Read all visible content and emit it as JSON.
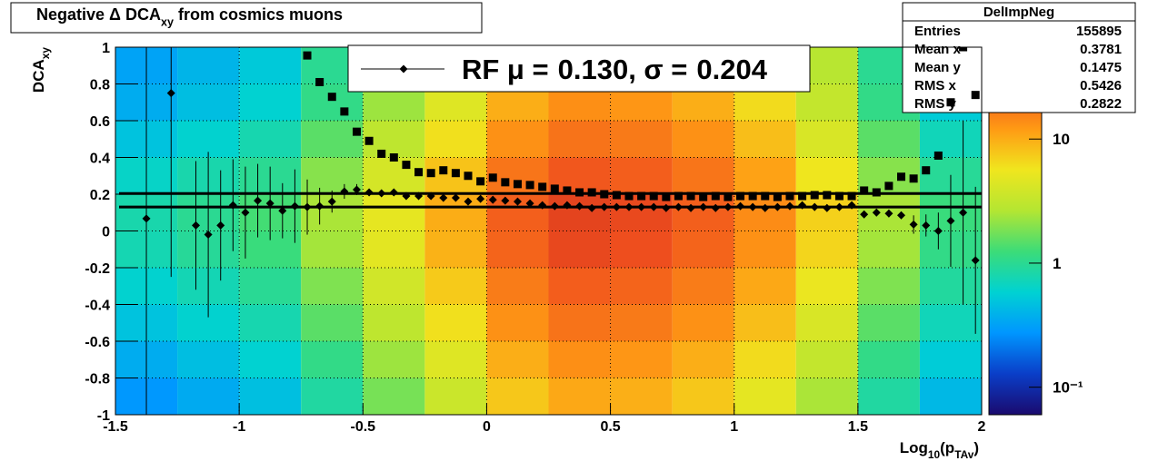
{
  "chart_data": {
    "type": "heatmap",
    "title": [
      "Negative Δ DCA",
      "xy",
      " from cosmics muons"
    ],
    "xlabel": [
      "Log",
      "10",
      "(p",
      "TAv",
      ")"
    ],
    "ylabel": [
      "DCA",
      "xy"
    ],
    "xlim": [
      -1.5,
      2
    ],
    "ylim": [
      -1,
      1
    ],
    "xticks": [
      -1.5,
      -1,
      -0.5,
      0,
      0.5,
      1,
      1.5,
      2
    ],
    "yticks": [
      -1,
      -0.8,
      -0.6,
      -0.4,
      -0.2,
      0,
      0.2,
      0.4,
      0.6,
      0.8,
      1
    ],
    "grid": true,
    "x_edges": [
      -1.5,
      -1.25,
      -1,
      -0.75,
      -0.5,
      -0.25,
      0,
      0.25,
      0.5,
      0.75,
      1,
      1.25,
      1.5,
      1.75,
      2
    ],
    "y_edges": [
      -1,
      -0.8,
      -0.6,
      -0.4,
      -0.2,
      0,
      0.2,
      0.4,
      0.6,
      0.8,
      1
    ],
    "z": [
      [
        0.28,
        0.35,
        0.46,
        0.88,
        1.8,
        3.5,
        7.7,
        10.5,
        9.8,
        7.7,
        4.9,
        2.5,
        0.88,
        0.42
      ],
      [
        0.36,
        0.45,
        0.59,
        1.1,
        2.3,
        4.5,
        9.9,
        13.5,
        12.6,
        9.9,
        6.3,
        3.2,
        1.1,
        0.54
      ],
      [
        0.48,
        0.6,
        0.78,
        1.5,
        3,
        6,
        13.2,
        18,
        16.8,
        13.2,
        8.4,
        4.2,
        1.5,
        0.72
      ],
      [
        0.6,
        0.75,
        0.98,
        1.9,
        3.8,
        7.5,
        16.5,
        22.5,
        21,
        16.5,
        10.5,
        5.3,
        1.9,
        0.9
      ],
      [
        0.76,
        0.95,
        1.2,
        2.4,
        4.8,
        9.5,
        20.9,
        28.5,
        26.6,
        20.9,
        13.3,
        6.7,
        2.4,
        1.1
      ],
      [
        0.8,
        1,
        1.3,
        2.5,
        5,
        10,
        22,
        30,
        28,
        22,
        14,
        7,
        2.5,
        1.2
      ],
      [
        0.64,
        0.8,
        1,
        2,
        4,
        8,
        17.6,
        24,
        22.4,
        17.6,
        11.2,
        5.6,
        2,
        0.96
      ],
      [
        0.48,
        0.6,
        0.78,
        1.5,
        3,
        6,
        13.2,
        18,
        16.8,
        13.2,
        8.4,
        4.2,
        1.5,
        0.72
      ],
      [
        0.36,
        0.45,
        0.59,
        1.1,
        2.3,
        4.5,
        9.9,
        13.5,
        12.6,
        9.9,
        6.3,
        3.2,
        1.1,
        0.54
      ],
      [
        0.32,
        0.4,
        0.52,
        1,
        2,
        4,
        8.8,
        12,
        11.2,
        8.8,
        5.6,
        2.8,
        1,
        0.48
      ]
    ],
    "zlim": [
      0.06,
      55
    ],
    "zscale": "log",
    "zticks": [
      {
        "value": 0.1,
        "label": "10⁻¹"
      },
      1,
      10
    ],
    "palette": [
      "#1a0a6e",
      "#0a3ec8",
      "#0096ff",
      "#00d2d2",
      "#3cdc78",
      "#b4e632",
      "#f0e61e",
      "#ff9a14",
      "#f0501e",
      "#b4141e"
    ],
    "series": [
      {
        "marker": "diamond",
        "color": "#000000",
        "x": [
          -1.375,
          -1.275,
          -1.175,
          -1.125,
          -1.075,
          -1.025,
          -0.975,
          -0.925,
          -0.875,
          -0.825,
          -0.775,
          -0.725,
          -0.675,
          -0.625,
          -0.575,
          -0.525,
          -0.475,
          -0.425,
          -0.375,
          -0.325,
          -0.275,
          -0.225,
          -0.175,
          -0.125,
          -0.075,
          -0.025,
          0.025,
          0.075,
          0.125,
          0.175,
          0.225,
          0.275,
          0.325,
          0.375,
          0.425,
          0.475,
          0.525,
          0.575,
          0.625,
          0.675,
          0.725,
          0.775,
          0.825,
          0.875,
          0.925,
          0.975,
          1.025,
          1.075,
          1.125,
          1.175,
          1.225,
          1.275,
          1.325,
          1.375,
          1.425,
          1.475,
          1.525,
          1.575,
          1.625,
          1.675,
          1.725,
          1.775,
          1.825,
          1.875,
          1.925,
          1.975
        ],
        "values": [
          0.067,
          0.75,
          0.03,
          -0.02,
          0.03,
          0.14,
          0.1,
          0.165,
          0.15,
          0.11,
          0.135,
          0.13,
          0.135,
          0.16,
          0.215,
          0.225,
          0.21,
          0.205,
          0.21,
          0.19,
          0.19,
          0.19,
          0.18,
          0.18,
          0.16,
          0.175,
          0.17,
          0.165,
          0.16,
          0.15,
          0.14,
          0.135,
          0.14,
          0.135,
          0.125,
          0.13,
          0.13,
          0.13,
          0.13,
          0.13,
          0.125,
          0.13,
          0.125,
          0.13,
          0.125,
          0.13,
          0.135,
          0.13,
          0.125,
          0.13,
          0.135,
          0.14,
          0.13,
          0.125,
          0.13,
          0.14,
          0.09,
          0.1,
          0.095,
          0.085,
          0.035,
          0.03,
          0.0,
          0.055,
          0.1,
          -0.16
        ],
        "errors": [
          1.2,
          1.0,
          0.35,
          0.45,
          0.3,
          0.25,
          0.25,
          0.2,
          0.2,
          0.15,
          0.2,
          0.15,
          0.1,
          0.06,
          0.04,
          0.03,
          0.02,
          0.02,
          0.02,
          0.02,
          0.02,
          0.02,
          0.02,
          0.02,
          0.02,
          0.02,
          0.02,
          0.02,
          0.02,
          0.02,
          0.02,
          0.02,
          0.02,
          0.02,
          0.02,
          0.02,
          0.02,
          0.02,
          0.02,
          0.02,
          0.02,
          0.02,
          0.02,
          0.02,
          0.02,
          0.02,
          0.02,
          0.02,
          0.02,
          0.02,
          0.02,
          0.02,
          0.02,
          0.02,
          0.02,
          0.02,
          0.02,
          0.02,
          0.02,
          0.02,
          0.05,
          0.06,
          0.1,
          0.25,
          0.5,
          0.4
        ]
      },
      {
        "marker": "square",
        "color": "#000000",
        "x": [
          -0.725,
          -0.675,
          -0.625,
          -0.575,
          -0.525,
          -0.475,
          -0.425,
          -0.375,
          -0.325,
          -0.275,
          -0.225,
          -0.175,
          -0.125,
          -0.075,
          -0.025,
          0.025,
          0.075,
          0.125,
          0.175,
          0.225,
          0.275,
          0.325,
          0.375,
          0.425,
          0.475,
          0.525,
          0.575,
          0.625,
          0.675,
          0.725,
          0.775,
          0.825,
          0.875,
          0.925,
          0.975,
          1.025,
          1.075,
          1.125,
          1.175,
          1.225,
          1.275,
          1.325,
          1.375,
          1.425,
          1.475,
          1.525,
          1.575,
          1.625,
          1.675,
          1.725,
          1.775,
          1.825,
          1.875,
          1.925,
          1.975
        ],
        "values": [
          0.955,
          0.81,
          0.73,
          0.65,
          0.54,
          0.49,
          0.42,
          0.4,
          0.36,
          0.32,
          0.315,
          0.33,
          0.315,
          0.3,
          0.27,
          0.29,
          0.265,
          0.255,
          0.25,
          0.24,
          0.23,
          0.22,
          0.21,
          0.21,
          0.2,
          0.195,
          0.19,
          0.19,
          0.19,
          0.185,
          0.19,
          0.19,
          0.185,
          0.19,
          0.185,
          0.19,
          0.19,
          0.19,
          0.185,
          0.19,
          0.19,
          0.195,
          0.195,
          0.19,
          0.19,
          0.22,
          0.21,
          0.245,
          0.295,
          0.285,
          0.33,
          0.41,
          0.7,
          1.0,
          0.74
        ]
      }
    ],
    "fit": {
      "text_mu": "RF μ =",
      "mu": {
        "value": 0.13,
        "label": "0.130"
      },
      "text_sigma": ", σ =",
      "sigma": {
        "value": 0.204,
        "label": "0.204"
      }
    },
    "stats": {
      "title": "DelImpNeg",
      "rows": [
        [
          "Entries",
          155895
        ],
        [
          "Mean x",
          0.3781
        ],
        [
          "Mean y",
          0.1475
        ],
        [
          "RMS x",
          0.5426
        ],
        [
          "RMS y",
          0.2822
        ]
      ]
    }
  }
}
